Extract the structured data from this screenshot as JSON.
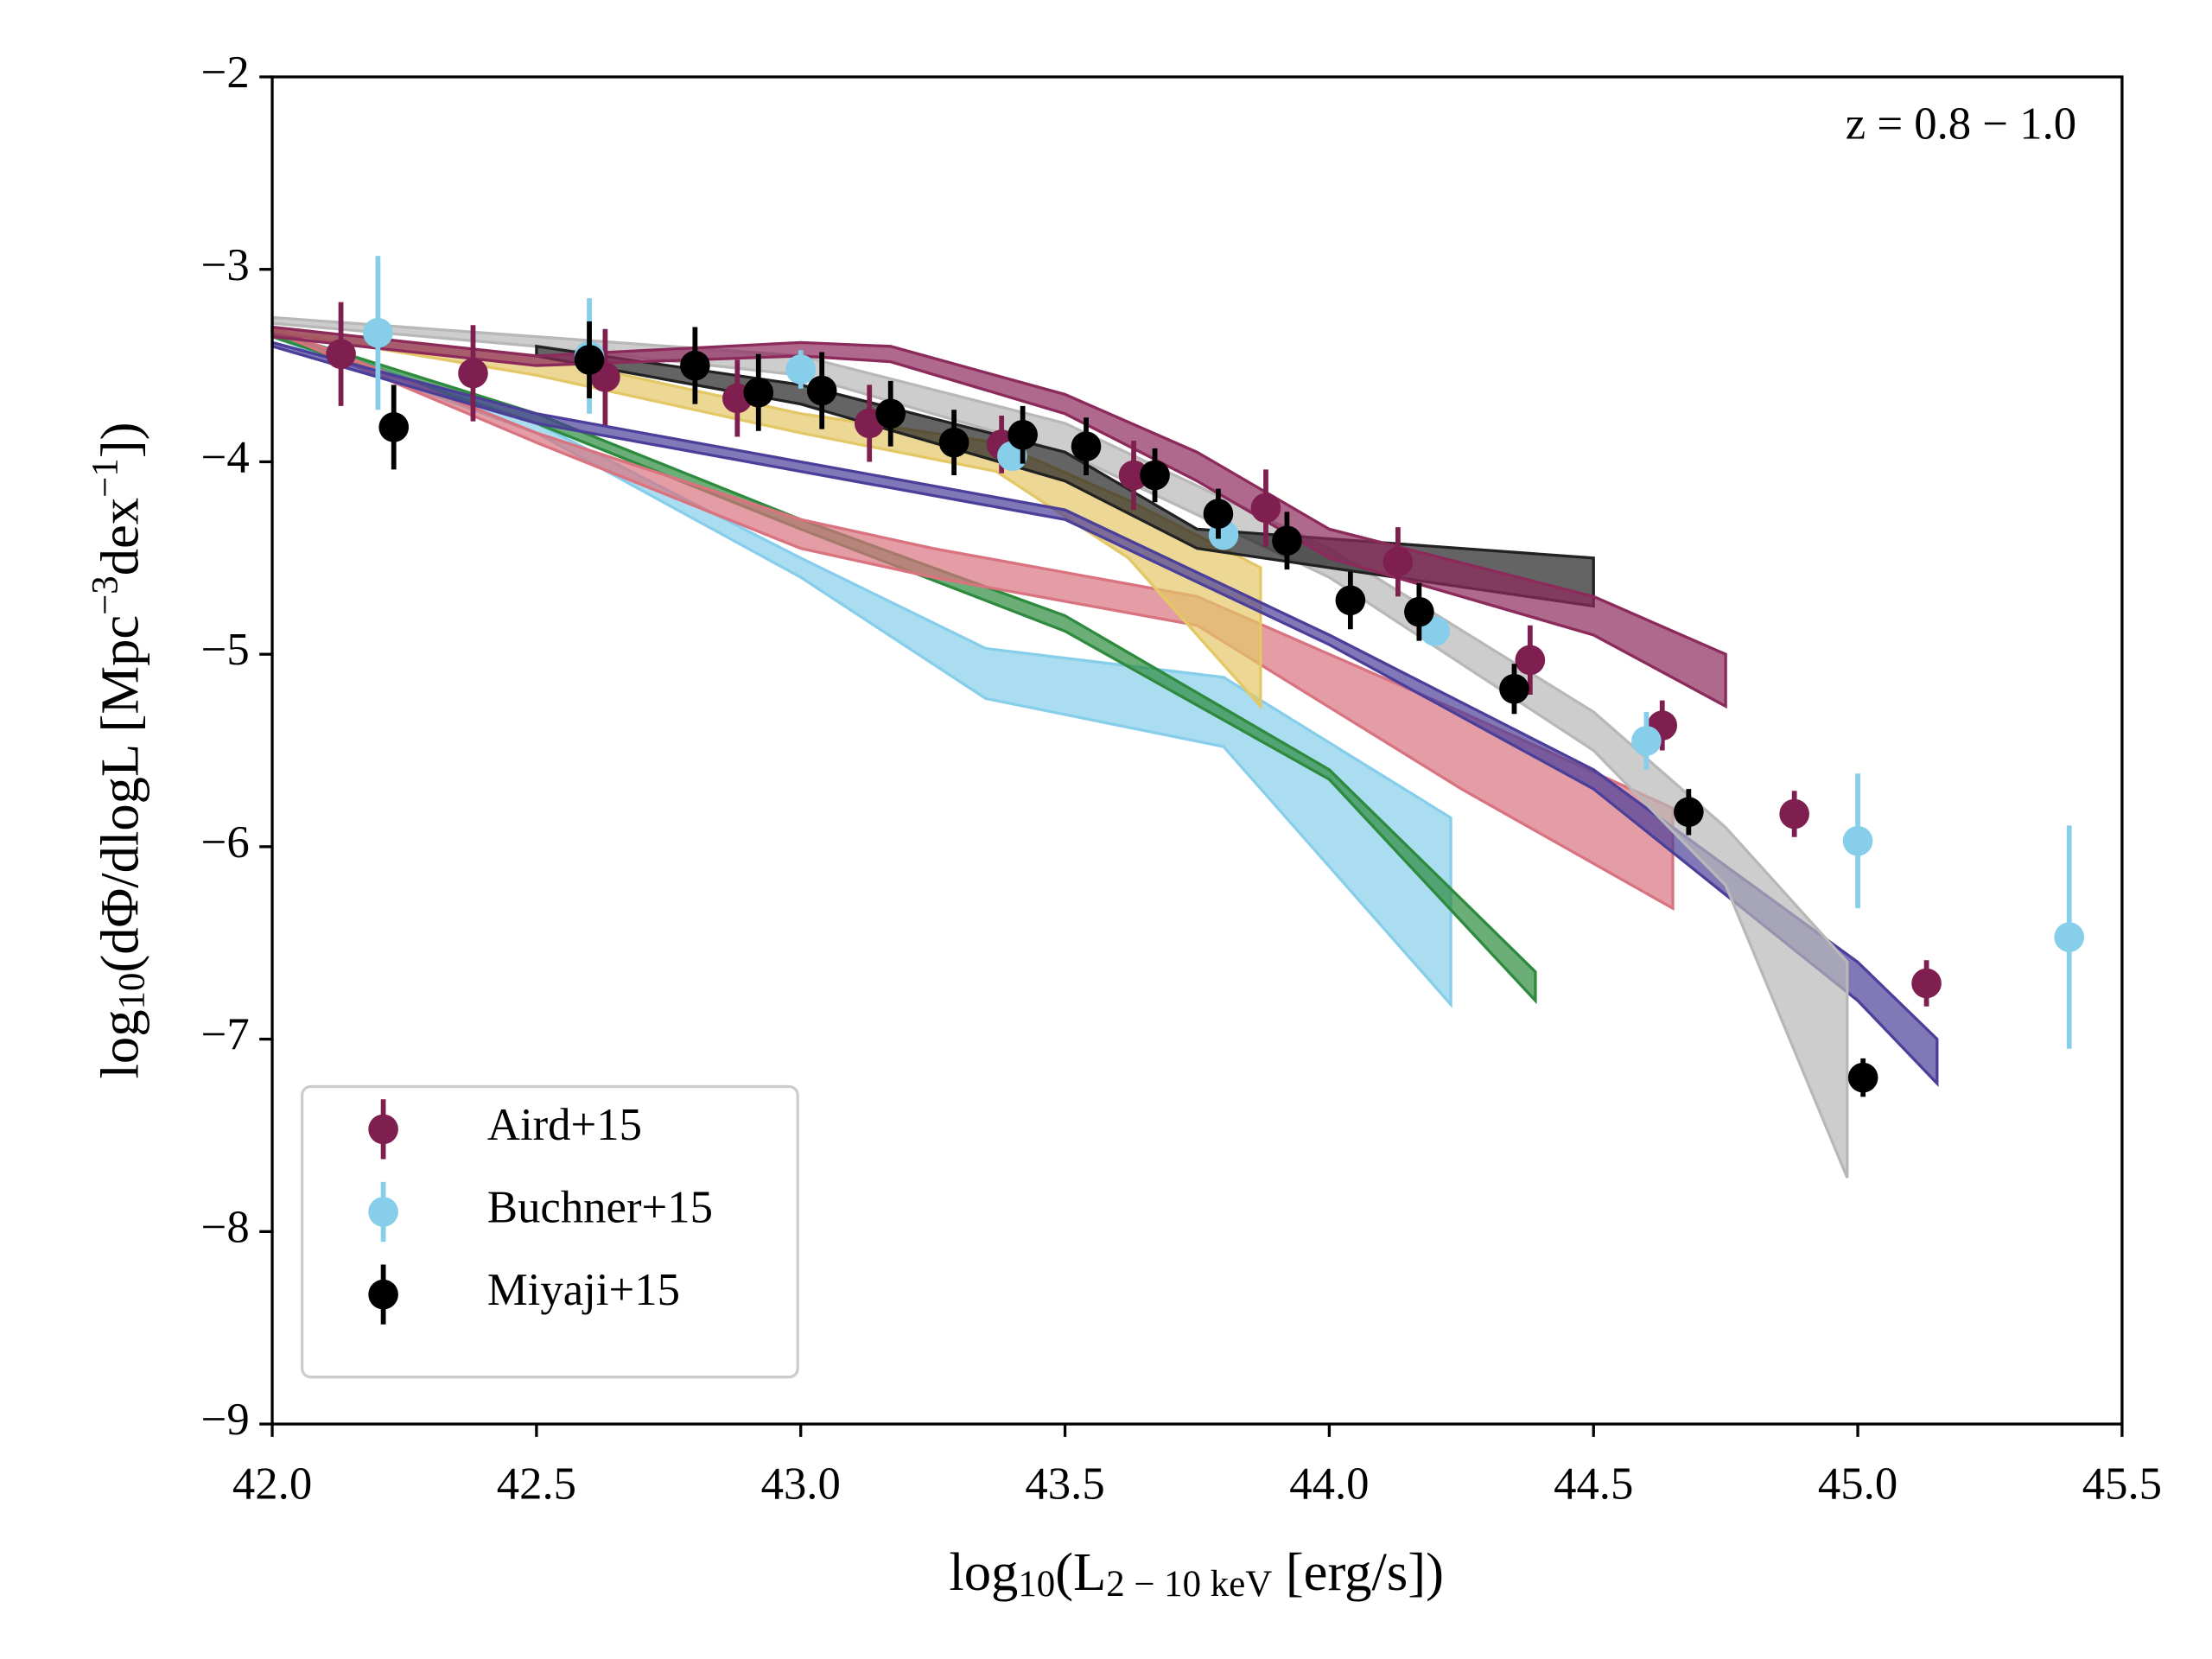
{
  "chart_data": {
    "type": "errorbar",
    "annotation": "z = 0.8 − 1.0",
    "xlabel": [
      {
        "text": "log"
      },
      {
        "text": "10",
        "sub": true
      },
      {
        "text": "(L"
      },
      {
        "text": "2 − 10 keV",
        "sub": true
      },
      {
        "text": " [erg/s])"
      }
    ],
    "ylabel": [
      {
        "text": "log"
      },
      {
        "text": "10",
        "sub": true
      },
      {
        "text": "(dΦ/dlogL [Mpc"
      },
      {
        "text": "−3",
        "sup": true
      },
      {
        "text": "dex"
      },
      {
        "text": "−1",
        "sup": true
      },
      {
        "text": "])"
      }
    ],
    "xlim": [
      42.0,
      45.5
    ],
    "ylim": [
      -9,
      -2
    ],
    "xticks": [
      {
        "value": 42,
        "label": "42.0"
      },
      {
        "value": 42.5,
        "label": "42.5"
      },
      {
        "value": 43,
        "label": "43.0"
      },
      {
        "value": 43.5,
        "label": "43.5"
      },
      {
        "value": 44,
        "label": "44.0"
      },
      {
        "value": 44.5,
        "label": "44.5"
      },
      {
        "value": 45,
        "label": "45.0"
      },
      {
        "value": 45.5,
        "label": "45.5"
      }
    ],
    "yticks": [
      {
        "value": -9,
        "label": "−9"
      },
      {
        "value": -8,
        "label": "−8"
      },
      {
        "value": -7,
        "label": "−7"
      },
      {
        "value": -6,
        "label": "−6"
      },
      {
        "value": -5,
        "label": "−5"
      },
      {
        "value": -4,
        "label": "−4"
      },
      {
        "value": -3,
        "label": "−3"
      },
      {
        "value": -2,
        "label": "−2"
      }
    ],
    "legend": "lower left",
    "bands": [
      {
        "color": "#87ceeb",
        "x": [
          42,
          42.5,
          43,
          43.35,
          43.8,
          44.23
        ],
        "upper": [
          -3.32,
          -3.8,
          -4.5,
          -4.97,
          -5.12,
          -5.85
        ],
        "lower": [
          -3.35,
          -3.85,
          -4.6,
          -5.23,
          -5.48,
          -6.82
        ]
      },
      {
        "color": "#2e8b3e",
        "x": [
          42,
          42.5,
          43,
          43.5,
          44,
          44.39
        ],
        "upper": [
          -3.32,
          -3.75,
          -4.3,
          -4.8,
          -5.6,
          -6.65
        ],
        "lower": [
          -3.35,
          -3.8,
          -4.35,
          -4.88,
          -5.65,
          -6.8
        ]
      },
      {
        "color": "#d9737f",
        "x": [
          42,
          42.5,
          43,
          43.25,
          43.75,
          44.25,
          44.65
        ],
        "upper": [
          -3.3,
          -3.85,
          -4.3,
          -4.45,
          -4.7,
          -5.3,
          -5.8
        ],
        "lower": [
          -3.32,
          -3.9,
          -4.45,
          -4.6,
          -4.85,
          -5.7,
          -6.32
        ]
      },
      {
        "color": "#e4c766",
        "x": [
          42,
          42.5,
          43,
          43.37,
          43.62,
          43.87
        ],
        "upper": [
          -3.3,
          -3.45,
          -3.75,
          -3.9,
          -4.2,
          -4.55
        ],
        "lower": [
          -3.32,
          -3.55,
          -3.85,
          -4.05,
          -4.5,
          -5.27
        ]
      },
      {
        "color": "#4b3f9a",
        "x": [
          42,
          42.5,
          43,
          43.5,
          44,
          44.5,
          45,
          45.15
        ],
        "upper": [
          -3.38,
          -3.75,
          -4.0,
          -4.25,
          -4.9,
          -5.6,
          -6.6,
          -7.0
        ],
        "lower": [
          -3.4,
          -3.8,
          -4.05,
          -4.3,
          -4.95,
          -5.7,
          -6.8,
          -7.23
        ]
      },
      {
        "color": "#b8b8b8",
        "x": [
          42,
          42.5,
          43,
          43.5,
          44,
          44.5,
          44.75,
          44.98
        ],
        "upper": [
          -3.25,
          -3.35,
          -3.45,
          -3.8,
          -4.45,
          -5.3,
          -5.9,
          -6.6
        ],
        "lower": [
          -3.28,
          -3.4,
          -3.55,
          -3.95,
          -4.6,
          -5.5,
          -6.2,
          -7.72
        ]
      },
      {
        "color": "#222222",
        "x": [
          42.5,
          43,
          43.5,
          43.75,
          44,
          44.5
        ],
        "upper": [
          -3.4,
          -3.6,
          -3.95,
          -4.35,
          -4.4,
          -4.5
        ],
        "lower": [
          -3.45,
          -3.7,
          -4.1,
          -4.45,
          -4.55,
          -4.75
        ]
      },
      {
        "color": "#8b2a5b",
        "x": [
          42,
          42.5,
          43,
          43.17,
          43.5,
          43.75,
          44,
          44.5,
          44.75
        ],
        "upper": [
          -3.3,
          -3.45,
          -3.38,
          -3.4,
          -3.65,
          -3.95,
          -4.35,
          -4.7,
          -5.0
        ],
        "lower": [
          -3.35,
          -3.5,
          -3.45,
          -3.48,
          -3.75,
          -4.1,
          -4.5,
          -4.9,
          -5.27
        ]
      }
    ],
    "series": [
      {
        "name": "Aird+15",
        "color": "#7f1f4f",
        "x": [
          42.13,
          42.38,
          42.63,
          42.88,
          43.13,
          43.38,
          43.63,
          43.88,
          44.13,
          44.38,
          44.63,
          44.88,
          45.13
        ],
        "values": [
          -3.44,
          -3.54,
          -3.56,
          -3.67,
          -3.8,
          -3.91,
          -4.07,
          -4.24,
          -4.52,
          -5.03,
          -5.37,
          -5.83,
          -6.71
        ],
        "errors": [
          0.27,
          0.25,
          0.25,
          0.2,
          0.2,
          0.15,
          0.18,
          0.2,
          0.18,
          0.18,
          0.13,
          0.12,
          0.12
        ]
      },
      {
        "name": "Buchner+15",
        "color": "#87ceeb",
        "x": [
          42.2,
          42.6,
          43.0,
          43.4,
          43.8,
          44.2,
          44.6,
          45.0,
          45.4
        ],
        "values": [
          -3.33,
          -3.45,
          -3.52,
          -3.97,
          -4.38,
          -4.88,
          -5.45,
          -5.97,
          -6.47
        ],
        "errors": [
          0.4,
          0.3,
          0.1,
          0.05,
          0.05,
          0.07,
          0.15,
          0.35,
          0.58
        ]
      },
      {
        "name": "Miyaji+15",
        "color": "#000000",
        "x": [
          42.23,
          42.6,
          42.8,
          42.92,
          43.04,
          43.17,
          43.29,
          43.42,
          43.54,
          43.67,
          43.79,
          43.92,
          44.04,
          44.17,
          44.35,
          44.68,
          45.01
        ],
        "values": [
          -3.82,
          -3.47,
          -3.5,
          -3.64,
          -3.63,
          -3.75,
          -3.9,
          -3.86,
          -3.92,
          -4.07,
          -4.27,
          -4.41,
          -4.72,
          -4.78,
          -5.18,
          -5.82,
          -7.2
        ],
        "errors": [
          0.22,
          0.2,
          0.2,
          0.2,
          0.2,
          0.17,
          0.17,
          0.15,
          0.15,
          0.14,
          0.13,
          0.15,
          0.15,
          0.15,
          0.13,
          0.12,
          0.1
        ]
      }
    ]
  }
}
